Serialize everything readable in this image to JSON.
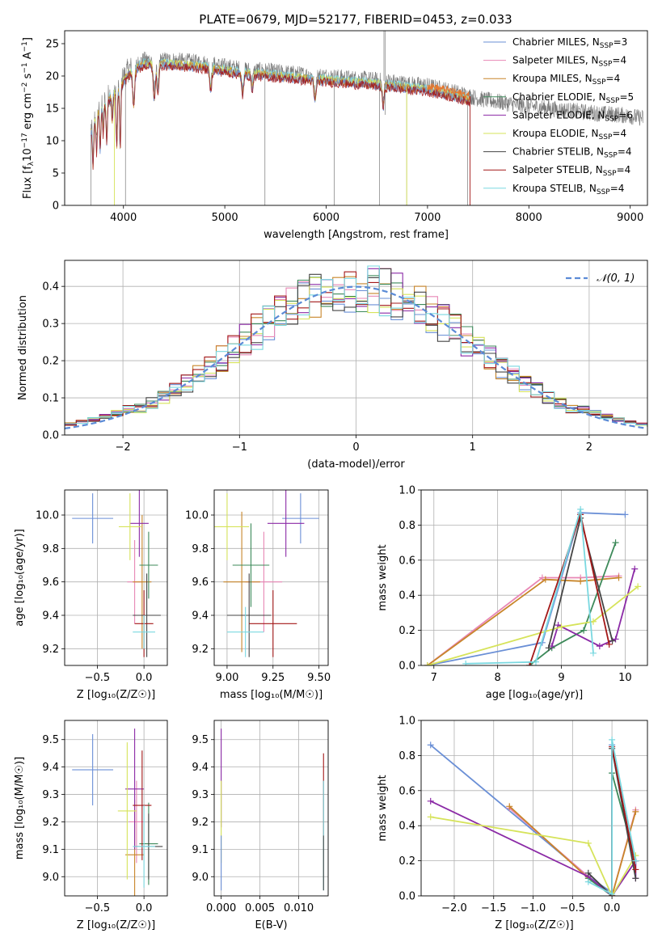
{
  "title": "PLATE=0679, MJD=52177, FIBERID=0453, z=0.033",
  "legend_entries": [
    {
      "base": "Chabrier MILES, N",
      "sub": "SSP",
      "tail": "=3",
      "color": "#6a8fd6"
    },
    {
      "base": "Salpeter MILES, N",
      "sub": "SSP",
      "tail": "=4",
      "color": "#e887b5"
    },
    {
      "base": "Kroupa MILES, N",
      "sub": "SSP",
      "tail": "=4",
      "color": "#c8862a"
    },
    {
      "base": "Chabrier ELODIE, N",
      "sub": "SSP",
      "tail": "=5",
      "color": "#3d8a5a"
    },
    {
      "base": "Salpeter ELODIE, N",
      "sub": "SSP",
      "tail": "=6",
      "color": "#8b2aa6"
    },
    {
      "base": "Kroupa ELODIE, N",
      "sub": "SSP",
      "tail": "=4",
      "color": "#d6e35a"
    },
    {
      "base": "Chabrier STELIB, N",
      "sub": "SSP",
      "tail": "=4",
      "color": "#444444"
    },
    {
      "base": "Salpeter STELIB, N",
      "sub": "SSP",
      "tail": "=4",
      "color": "#a31818"
    },
    {
      "base": "Kroupa STELIB, N",
      "sub": "SSP",
      "tail": "=4",
      "color": "#7ad8e0"
    }
  ],
  "colors": {
    "data": "#7a7a7a",
    "normal_curve": "#5b8bd6",
    "grid": "#b0b0b0",
    "model_blue": "#5b8bd6",
    "model_orange": "#e8772e"
  },
  "chart_data": [
    {
      "id": "spectrum",
      "type": "line",
      "xlabel": "wavelength [Angstrom, rest frame]",
      "ylabel_base": "Flux [f",
      "ylabel_sub": "λ",
      "ylabel_mid": "10",
      "ylabel_sup": "−17",
      "ylabel_tail": " erg cm",
      "ylabel_sup2": "−2",
      "ylabel_tail2": " s",
      "ylabel_sup3": "−1",
      "ylabel_tail3": " A",
      "ylabel_sup4": "−1",
      "ylabel_end": "]",
      "xlim": [
        3420,
        9170
      ],
      "ylim": [
        0,
        27
      ],
      "xticks": [
        "4000",
        "5000",
        "6000",
        "7000",
        "8000",
        "9000"
      ],
      "yticks": [
        "0",
        "5",
        "10",
        "15",
        "20",
        "25"
      ],
      "continuum": [
        [
          3680,
          12
        ],
        [
          3750,
          15
        ],
        [
          3850,
          17
        ],
        [
          3950,
          18.5
        ],
        [
          4050,
          21
        ],
        [
          4200,
          22.5
        ],
        [
          4400,
          22.5
        ],
        [
          4600,
          22.3
        ],
        [
          4800,
          22
        ],
        [
          5000,
          21.5
        ],
        [
          5200,
          21
        ],
        [
          5400,
          20.8
        ],
        [
          5600,
          20.5
        ],
        [
          5800,
          20.2
        ],
        [
          6000,
          20
        ],
        [
          6200,
          19.7
        ],
        [
          6400,
          19.5
        ],
        [
          6600,
          19.2
        ],
        [
          6800,
          18.8
        ],
        [
          7000,
          18.5
        ],
        [
          7200,
          17.8
        ],
        [
          7400,
          17
        ],
        [
          7500,
          16.5
        ],
        [
          7700,
          16
        ],
        [
          7900,
          15.5
        ],
        [
          8100,
          15.2
        ],
        [
          8300,
          14.8
        ],
        [
          8500,
          14.5
        ],
        [
          8700,
          14.2
        ],
        [
          8900,
          14
        ],
        [
          9130,
          13.5
        ]
      ],
      "model_end": 7420,
      "absorption": [
        [
          3700,
          6
        ],
        [
          3735,
          5
        ],
        [
          3770,
          6
        ],
        [
          3800,
          4
        ],
        [
          3835,
          6
        ],
        [
          3890,
          4
        ],
        [
          3934,
          8
        ],
        [
          3968,
          9
        ],
        [
          4101,
          5
        ],
        [
          4304,
          5
        ],
        [
          4340,
          4
        ],
        [
          4861,
          3
        ],
        [
          5175,
          3
        ],
        [
          5270,
          2
        ],
        [
          5890,
          3
        ],
        [
          6563,
          3
        ]
      ],
      "spikes": [
        [
          3680,
          0
        ],
        [
          4020,
          0
        ],
        [
          5396,
          0
        ],
        [
          6080,
          0
        ],
        [
          6525,
          0
        ],
        [
          6570,
          27
        ],
        [
          6584,
          27
        ],
        [
          6583,
          14
        ],
        [
          6795,
          0
        ],
        [
          7395,
          0
        ]
      ],
      "drops": [
        [
          3910,
          0
        ],
        [
          6795,
          0
        ],
        [
          7420,
          0
        ]
      ]
    },
    {
      "id": "residuals",
      "type": "histogram",
      "xlabel": "(data-model)/error",
      "ylabel": "Normed distribution",
      "xlim": [
        -2.5,
        2.5
      ],
      "ylim": [
        0,
        0.47
      ],
      "xticks": [
        "−2",
        "−1",
        "0",
        "1",
        "2"
      ],
      "yticks": [
        "0.0",
        "0.1",
        "0.2",
        "0.3",
        "0.4"
      ],
      "legend": "𝒩(0, 1)",
      "bin_width": 0.1
    },
    {
      "id": "age_vs_Z",
      "type": "scatter",
      "xlabel": "Z [log₁₀(Z/Z☉)]",
      "ylabel": "age  [log₁₀(age/yr)]",
      "xlim": [
        -0.85,
        0.25
      ],
      "ylim": [
        9.1,
        10.15
      ],
      "xticks": [
        "−0.5",
        "0.0"
      ],
      "yticks": [
        "9.2",
        "9.4",
        "9.6",
        "9.8",
        "10.0"
      ],
      "points": [
        {
          "x": -0.55,
          "y": 9.98,
          "ex": 0.22,
          "ey": 0.15,
          "series": 0
        },
        {
          "x": -0.1,
          "y": 9.6,
          "ex": 0.08,
          "ey": 0.25,
          "series": 1
        },
        {
          "x": -0.02,
          "y": 9.6,
          "ex": 0.1,
          "ey": 0.4,
          "series": 2
        },
        {
          "x": 0.05,
          "y": 9.7,
          "ex": 0.1,
          "ey": 0.2,
          "series": 3
        },
        {
          "x": -0.05,
          "y": 9.95,
          "ex": 0.1,
          "ey": 0.2,
          "series": 4
        },
        {
          "x": -0.15,
          "y": 9.93,
          "ex": 0.12,
          "ey": 0.2,
          "series": 5
        },
        {
          "x": 0.03,
          "y": 9.4,
          "ex": 0.15,
          "ey": 0.25,
          "series": 6
        },
        {
          "x": 0.0,
          "y": 9.35,
          "ex": 0.1,
          "ey": 0.2,
          "series": 7
        },
        {
          "x": 0.0,
          "y": 9.3,
          "ex": 0.12,
          "ey": 0.1,
          "series": 8
        }
      ]
    },
    {
      "id": "age_vs_mass",
      "type": "scatter",
      "xlabel": "mass [log₁₀(M/M☉)]",
      "ylabel": "",
      "xlim": [
        8.93,
        9.55
      ],
      "ylim": [
        9.1,
        10.15
      ],
      "xticks": [
        "9.00",
        "9.25",
        "9.50"
      ],
      "yticks": [
        "9.2",
        "9.4",
        "9.6",
        "9.8",
        "10.0"
      ],
      "points": [
        {
          "x": 9.4,
          "y": 9.98,
          "ex": 0.1,
          "ey": 0.15,
          "series": 0
        },
        {
          "x": 9.2,
          "y": 9.6,
          "ex": 0.1,
          "ey": 0.3,
          "series": 1
        },
        {
          "x": 9.08,
          "y": 9.6,
          "ex": 0.1,
          "ey": 0.42,
          "series": 2
        },
        {
          "x": 9.13,
          "y": 9.7,
          "ex": 0.1,
          "ey": 0.25,
          "series": 3
        },
        {
          "x": 9.32,
          "y": 9.95,
          "ex": 0.1,
          "ey": 0.2,
          "series": 4
        },
        {
          "x": 9.0,
          "y": 9.93,
          "ex": 0.12,
          "ey": 0.2,
          "series": 5
        },
        {
          "x": 9.12,
          "y": 9.4,
          "ex": 0.12,
          "ey": 0.25,
          "series": 6
        },
        {
          "x": 9.25,
          "y": 9.35,
          "ex": 0.13,
          "ey": 0.2,
          "series": 7
        },
        {
          "x": 9.1,
          "y": 9.3,
          "ex": 0.1,
          "ey": 0.15,
          "series": 8
        }
      ]
    },
    {
      "id": "weight_vs_age",
      "type": "line",
      "xlabel": "age  [log₁₀(age/yr)]",
      "ylabel": "mass weight",
      "xlim": [
        6.8,
        10.35
      ],
      "ylim": [
        0,
        1.0
      ],
      "xticks": [
        "7",
        "8",
        "9",
        "10"
      ],
      "yticks": [
        "0.0",
        "0.2",
        "0.4",
        "0.6",
        "0.8",
        "1.0"
      ]
    },
    {
      "id": "mass_vs_Z",
      "type": "scatter",
      "xlabel": "Z [log₁₀(Z/Z☉)]",
      "ylabel": "mass [log₁₀(M/M☉)]",
      "xlim": [
        -0.85,
        0.25
      ],
      "ylim": [
        8.93,
        9.57
      ],
      "xticks": [
        "−0.5",
        "0.0"
      ],
      "yticks": [
        "9.0",
        "9.1",
        "9.2",
        "9.3",
        "9.4",
        "9.5"
      ],
      "points": [
        {
          "x": -0.55,
          "y": 9.39,
          "ex": 0.22,
          "ey": 0.13,
          "series": 0
        },
        {
          "x": -0.08,
          "y": 9.2,
          "ex": 0.08,
          "ey": 0.15,
          "series": 1
        },
        {
          "x": -0.1,
          "y": 9.08,
          "ex": 0.1,
          "ey": 0.2,
          "series": 2
        },
        {
          "x": 0.05,
          "y": 9.12,
          "ex": 0.1,
          "ey": 0.15,
          "series": 3
        },
        {
          "x": -0.1,
          "y": 9.32,
          "ex": 0.1,
          "ey": 0.22,
          "series": 4
        },
        {
          "x": -0.18,
          "y": 9.24,
          "ex": 0.1,
          "ey": 0.25,
          "series": 5
        },
        {
          "x": 0.05,
          "y": 9.11,
          "ex": 0.15,
          "ey": 0.12,
          "series": 6
        },
        {
          "x": -0.02,
          "y": 9.26,
          "ex": 0.1,
          "ey": 0.2,
          "series": 7
        },
        {
          "x": 0.0,
          "y": 9.11,
          "ex": 0.12,
          "ey": 0.15,
          "series": 8
        }
      ]
    },
    {
      "id": "mass_vs_EBV",
      "type": "scatter",
      "xlabel": "E(B-V)",
      "ylabel": "",
      "xlim": [
        -0.0009,
        0.0138
      ],
      "ylim": [
        8.93,
        9.57
      ],
      "xticks": [
        "0.000",
        "0.005",
        "0.010"
      ],
      "yticks": [
        "9.0",
        "9.1",
        "9.2",
        "9.3",
        "9.4",
        "9.5"
      ],
      "points": [
        {
          "x": 0.0,
          "y": 9.36,
          "ex": 0,
          "ey": 0.18,
          "series": 4
        },
        {
          "x": 0.0,
          "y": 9.2,
          "ex": 0,
          "ey": 0.15,
          "series": 5
        },
        {
          "x": 0.0,
          "y": 9.05,
          "ex": 0,
          "ey": 0.1,
          "series": 0
        },
        {
          "x": 0.0132,
          "y": 9.3,
          "ex": 0,
          "ey": 0.15,
          "series": 7
        },
        {
          "x": 0.0132,
          "y": 9.15,
          "ex": 0,
          "ey": 0.2,
          "series": 8
        },
        {
          "x": 0.0132,
          "y": 9.05,
          "ex": 0,
          "ey": 0.1,
          "series": 6
        }
      ]
    },
    {
      "id": "weight_vs_Z",
      "type": "line",
      "xlabel": "Z [log₁₀(Z/Z☉)]",
      "ylabel": "mass weight",
      "xlim": [
        -2.42,
        0.45
      ],
      "ylim": [
        0,
        1.0
      ],
      "xticks": [
        "−2.0",
        "−1.5",
        "−1.0",
        "−0.5",
        "0.0"
      ],
      "yticks": [
        "0.0",
        "0.2",
        "0.4",
        "0.6",
        "0.8",
        "1.0"
      ]
    }
  ],
  "weight_age_lines": [
    {
      "series": 0,
      "pts": [
        [
          6.9,
          0
        ],
        [
          8.7,
          0.13
        ],
        [
          9.3,
          0.87
        ],
        [
          10.0,
          0.86
        ]
      ]
    },
    {
      "series": 1,
      "pts": [
        [
          6.9,
          0
        ],
        [
          8.7,
          0.5
        ],
        [
          9.3,
          0.5
        ],
        [
          9.9,
          0.51
        ]
      ]
    },
    {
      "series": 2,
      "pts": [
        [
          6.9,
          0
        ],
        [
          8.75,
          0.49
        ],
        [
          9.3,
          0.48
        ],
        [
          9.9,
          0.5
        ]
      ]
    },
    {
      "series": 3,
      "pts": [
        [
          8.5,
          0
        ],
        [
          8.85,
          0.1
        ],
        [
          9.35,
          0.2
        ],
        [
          9.85,
          0.7
        ]
      ]
    },
    {
      "series": 4,
      "pts": [
        [
          8.85,
          0.11
        ],
        [
          8.95,
          0.23
        ],
        [
          9.6,
          0.11
        ],
        [
          9.85,
          0.15
        ],
        [
          10.15,
          0.55
        ]
      ]
    },
    {
      "series": 5,
      "pts": [
        [
          6.9,
          0
        ],
        [
          9.0,
          0.22
        ],
        [
          9.5,
          0.25
        ],
        [
          10.2,
          0.45
        ]
      ]
    },
    {
      "series": 6,
      "pts": [
        [
          8.8,
          0.1
        ],
        [
          9.3,
          0.84
        ],
        [
          9.8,
          0.14
        ]
      ]
    },
    {
      "series": 7,
      "pts": [
        [
          8.5,
          0
        ],
        [
          9.3,
          0.86
        ],
        [
          9.75,
          0.12
        ]
      ]
    },
    {
      "series": 8,
      "pts": [
        [
          7.5,
          0.01
        ],
        [
          8.6,
          0.02
        ],
        [
          9.3,
          0.89
        ],
        [
          9.5,
          0.07
        ]
      ]
    }
  ],
  "weight_Z_lines": [
    {
      "series": 0,
      "pts": [
        [
          -2.3,
          0.86
        ],
        [
          -0.3,
          0.11
        ],
        [
          0,
          0.02
        ],
        [
          0,
          0.86
        ]
      ]
    },
    {
      "series": 1,
      "pts": [
        [
          -1.3,
          0.5
        ],
        [
          -0.3,
          0.11
        ],
        [
          0,
          0
        ],
        [
          0.3,
          0.49
        ]
      ]
    },
    {
      "series": 2,
      "pts": [
        [
          -1.3,
          0.51
        ],
        [
          -0.3,
          0.1
        ],
        [
          0,
          0
        ],
        [
          0.3,
          0.48
        ]
      ]
    },
    {
      "series": 3,
      "pts": [
        [
          -0.3,
          0.1
        ],
        [
          0,
          0
        ],
        [
          0,
          0.7
        ],
        [
          0.3,
          0.2
        ]
      ]
    },
    {
      "series": 4,
      "pts": [
        [
          -2.3,
          0.54
        ],
        [
          -0.3,
          0.11
        ],
        [
          0,
          0
        ],
        [
          0.3,
          0.2
        ],
        [
          0.3,
          0.1
        ]
      ]
    },
    {
      "series": 5,
      "pts": [
        [
          -2.3,
          0.45
        ],
        [
          -0.3,
          0.3
        ],
        [
          0,
          0
        ],
        [
          0.3,
          0.23
        ]
      ]
    },
    {
      "series": 6,
      "pts": [
        [
          -0.3,
          0.13
        ],
        [
          0,
          0
        ],
        [
          0,
          0.84
        ],
        [
          0.3,
          0.1
        ]
      ]
    },
    {
      "series": 7,
      "pts": [
        [
          0,
          0
        ],
        [
          0,
          0.85
        ],
        [
          0.3,
          0.15
        ]
      ]
    },
    {
      "series": 8,
      "pts": [
        [
          -0.3,
          0.08
        ],
        [
          0,
          0.01
        ],
        [
          0,
          0.89
        ],
        [
          0.3,
          0.2
        ]
      ]
    }
  ]
}
